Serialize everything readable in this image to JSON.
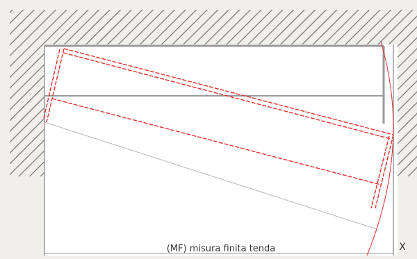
{
  "diagram": {
    "labels": {
      "finished_size": "(MF) misura finita tenda",
      "x_marker": "X"
    },
    "colors": {
      "background": "#f0efec",
      "hatch": "#8a8a8a",
      "wall_fill": "#ffffff",
      "frame": "#9a9a9a",
      "curtain": "#e03030",
      "guide": "#b0b0b0"
    }
  }
}
